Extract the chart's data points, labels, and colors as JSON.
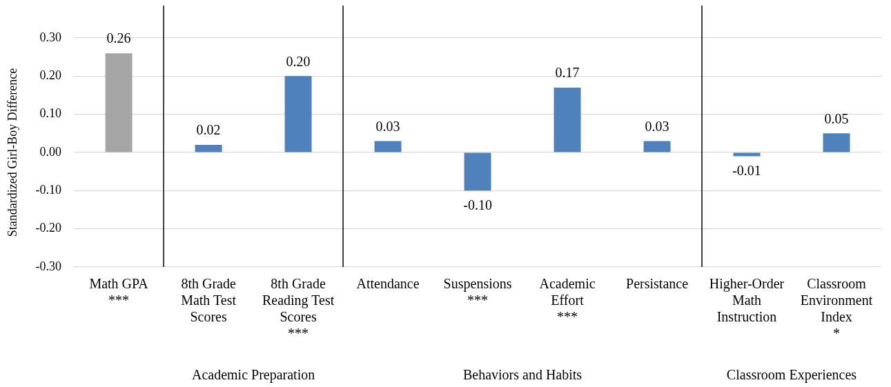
{
  "chart_data": {
    "type": "bar",
    "ylabel": "Standardized Girl-Boy Difference",
    "categories": [
      "Math GPA\n***",
      "8th Grade\nMath Test\nScores",
      "8th Grade\nReading Test\nScores\n***",
      "Attendance",
      "Suspensions\n***",
      "Academic\nEffort\n***",
      "Persistance",
      "Higher-Order\nMath\nInstruction",
      "Classroom\nEnvironment\nIndex\n*"
    ],
    "values": [
      0.26,
      0.02,
      0.2,
      0.03,
      -0.1,
      0.17,
      0.03,
      -0.01,
      0.05
    ],
    "colors": [
      "#a5a5a5",
      "#4f81bd",
      "#4f81bd",
      "#4f81bd",
      "#4f81bd",
      "#4f81bd",
      "#4f81bd",
      "#4f81bd",
      "#4f81bd"
    ],
    "value_labels": [
      "0.26",
      "0.02",
      "0.20",
      "0.03",
      "-0.10",
      "0.17",
      "0.03",
      "-0.01",
      "0.05"
    ],
    "ylim": [
      -0.3,
      0.3
    ],
    "yticks": [
      {
        "value": -0.3,
        "label": "-0.30"
      },
      {
        "value": -0.2,
        "label": "-0.20"
      },
      {
        "value": -0.1,
        "label": "-0.10"
      },
      {
        "value": 0,
        "label": "0.00"
      },
      {
        "value": 0.1,
        "label": "0.10"
      },
      {
        "value": 0.2,
        "label": "0.20"
      },
      {
        "value": 0.3,
        "label": "0.30"
      }
    ],
    "grid": "y",
    "legend": false,
    "annotations": [
      "Academic Preparation",
      "Behaviors and Habits",
      "Classroom Experiences"
    ]
  }
}
